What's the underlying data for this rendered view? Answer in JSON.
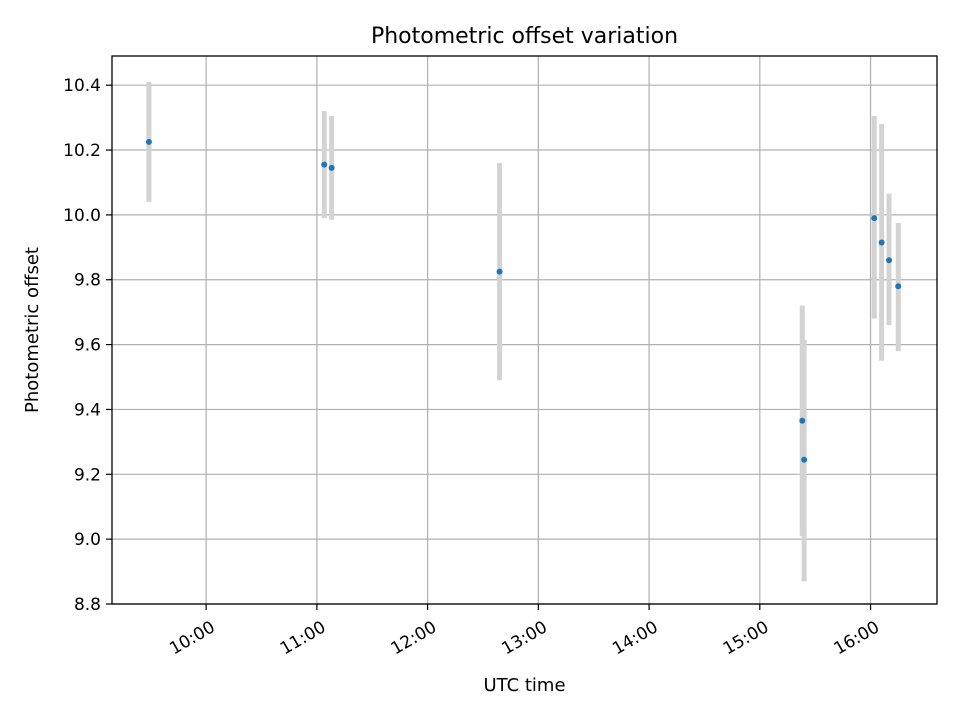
{
  "chart_data": {
    "type": "scatter",
    "title": "Photometric offset variation",
    "xlabel": "UTC time",
    "ylabel": "Photometric offset",
    "x_ticks": [
      "10:00",
      "11:00",
      "12:00",
      "13:00",
      "14:00",
      "15:00",
      "16:00"
    ],
    "y_ticks": [
      "8.8",
      "9.0",
      "9.2",
      "9.4",
      "9.6",
      "9.8",
      "10.0",
      "10.2",
      "10.4"
    ],
    "xlim": [
      "09:09",
      "16:36"
    ],
    "ylim": [
      8.8,
      10.49
    ],
    "grid": true,
    "point_color": "#1f77b4",
    "errorbar_color": "#d3d3d3",
    "points": [
      {
        "x": "09:29",
        "y": 10.225,
        "yerr_low": 10.04,
        "yerr_high": 10.41
      },
      {
        "x": "11:04",
        "y": 10.155,
        "yerr_low": 9.99,
        "yerr_high": 10.32
      },
      {
        "x": "11:08",
        "y": 10.145,
        "yerr_low": 9.985,
        "yerr_high": 10.305
      },
      {
        "x": "12:39",
        "y": 9.825,
        "yerr_low": 9.49,
        "yerr_high": 10.16
      },
      {
        "x": "15:23",
        "y": 9.365,
        "yerr_low": 9.01,
        "yerr_high": 9.72
      },
      {
        "x": "15:24",
        "y": 9.245,
        "yerr_low": 8.87,
        "yerr_high": 9.615
      },
      {
        "x": "16:02",
        "y": 9.99,
        "yerr_low": 9.68,
        "yerr_high": 10.305
      },
      {
        "x": "16:06",
        "y": 9.915,
        "yerr_low": 9.55,
        "yerr_high": 10.28
      },
      {
        "x": "16:10",
        "y": 9.86,
        "yerr_low": 9.66,
        "yerr_high": 10.065
      },
      {
        "x": "16:15",
        "y": 9.78,
        "yerr_low": 9.58,
        "yerr_high": 9.975
      }
    ]
  }
}
